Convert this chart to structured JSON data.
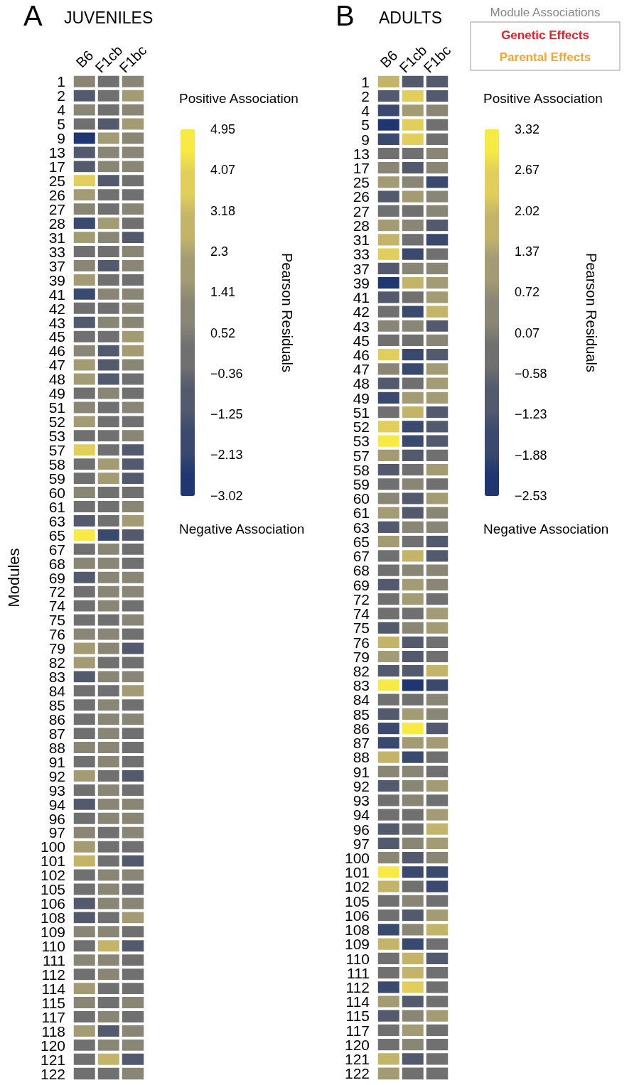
{
  "chart_data": [
    {
      "type": "heatmap",
      "title": "JUVENILES",
      "ylabel": "Modules",
      "clabel": "Pearson Residuals",
      "annotations": [
        "A",
        "Positive Association",
        "Negative Association"
      ],
      "categories": [
        "B6",
        "F1cb",
        "F1bc"
      ],
      "y_categories": [
        "1",
        "2",
        "4",
        "5",
        "9",
        "13",
        "17",
        "25",
        "26",
        "27",
        "28",
        "31",
        "33",
        "37",
        "39",
        "41",
        "42",
        "43",
        "45",
        "46",
        "47",
        "48",
        "49",
        "51",
        "52",
        "53",
        "57",
        "58",
        "59",
        "60",
        "61",
        "63",
        "65",
        "67",
        "68",
        "69",
        "72",
        "74",
        "75",
        "76",
        "79",
        "82",
        "83",
        "84",
        "85",
        "86",
        "87",
        "88",
        "91",
        "92",
        "93",
        "94",
        "96",
        "97",
        "100",
        "101",
        "102",
        "105",
        "106",
        "108",
        "109",
        "110",
        "111",
        "112",
        "114",
        "115",
        "117",
        "118",
        "120",
        "121",
        "122"
      ],
      "clim": [
        -3.02,
        4.95
      ],
      "cticks": [
        -3.02,
        -2.13,
        -1.25,
        -0.36,
        0.52,
        1.41,
        2.3,
        3.18,
        4.07,
        4.95
      ],
      "cells": [
        [
          1,
          0.1,
          1
        ],
        [
          -0.8,
          0.1,
          1.9
        ],
        [
          1,
          0.1,
          1
        ],
        [
          0.1,
          -0.8,
          1.9
        ],
        [
          -2.6,
          1.9,
          1
        ],
        [
          -0.8,
          1,
          1
        ],
        [
          -0.8,
          1,
          1
        ],
        [
          3.6,
          -0.8,
          0.1
        ],
        [
          1.9,
          0.1,
          0.1
        ],
        [
          1,
          0.1,
          1
        ],
        [
          -1.7,
          1.9,
          0.1
        ],
        [
          1.9,
          1,
          -0.8
        ],
        [
          0.1,
          0.1,
          1
        ],
        [
          1,
          -0.8,
          1
        ],
        [
          1.9,
          0.1,
          0.1
        ],
        [
          -1.7,
          1,
          1
        ],
        [
          0.1,
          0.1,
          1
        ],
        [
          -0.8,
          1,
          1
        ],
        [
          0.1,
          0.1,
          1.9
        ],
        [
          1,
          -0.8,
          1.9
        ],
        [
          1.9,
          -0.8,
          1
        ],
        [
          1.9,
          -0.8,
          0.1
        ],
        [
          0.1,
          1,
          0.1
        ],
        [
          1,
          0.1,
          1
        ],
        [
          1.9,
          0.1,
          0.1
        ],
        [
          0.1,
          0.1,
          1
        ],
        [
          3.6,
          0.1,
          -0.8
        ],
        [
          0.1,
          1.9,
          -0.8
        ],
        [
          0.1,
          1.9,
          -0.8
        ],
        [
          1,
          0.1,
          0.1
        ],
        [
          0.1,
          0.1,
          1
        ],
        [
          -0.8,
          0.1,
          1.9
        ],
        [
          4.5,
          -1.7,
          -0.8
        ],
        [
          0.1,
          1,
          0.1
        ],
        [
          1,
          1,
          0.1
        ],
        [
          -0.8,
          1,
          1
        ],
        [
          0.1,
          1,
          1
        ],
        [
          0.1,
          1,
          0.1
        ],
        [
          0.1,
          0.1,
          1
        ],
        [
          1,
          1,
          0.1
        ],
        [
          1.9,
          1,
          -0.8
        ],
        [
          1.9,
          0.1,
          0.1
        ],
        [
          -0.8,
          1,
          1
        ],
        [
          0.1,
          0.1,
          1.9
        ],
        [
          0.1,
          1,
          0.1
        ],
        [
          0.1,
          1,
          1
        ],
        [
          0.1,
          1,
          0.1
        ],
        [
          1,
          1,
          0.1
        ],
        [
          0.1,
          1,
          0.1
        ],
        [
          1.9,
          0.1,
          -0.8
        ],
        [
          0.1,
          1,
          0.1
        ],
        [
          -0.8,
          1,
          1
        ],
        [
          0.1,
          1,
          1
        ],
        [
          1,
          0.1,
          1
        ],
        [
          1.9,
          0.1,
          0.1
        ],
        [
          2.7,
          0.1,
          -0.8
        ],
        [
          0.1,
          1,
          1
        ],
        [
          0.1,
          1,
          0.1
        ],
        [
          -0.8,
          1,
          1
        ],
        [
          -0.8,
          0.1,
          1.9
        ],
        [
          1,
          1,
          0.1
        ],
        [
          0.1,
          2.7,
          -0.8
        ],
        [
          1,
          1,
          0.1
        ],
        [
          0.1,
          1,
          0.1
        ],
        [
          1.9,
          0.1,
          0.1
        ],
        [
          1,
          0.1,
          1
        ],
        [
          0.1,
          1,
          0.1
        ],
        [
          1.9,
          -0.8,
          1
        ],
        [
          0.1,
          1,
          1
        ],
        [
          0.1,
          2.7,
          -0.8
        ],
        [
          0.1,
          0.1,
          1
        ]
      ]
    },
    {
      "type": "heatmap",
      "title": "ADULTS",
      "clabel": "Pearson Residuals",
      "legend_title": "Module Associations",
      "annotations": [
        "B",
        "Positive Association",
        "Negative Association",
        "Genetic Effects",
        "Parental Effects"
      ],
      "categories": [
        "B6",
        "F1cb",
        "F1bc"
      ],
      "y_categories": [
        "1",
        "2",
        "4",
        "5",
        "9",
        "13",
        "17",
        "25",
        "26",
        "27",
        "28",
        "31",
        "33",
        "37",
        "39",
        "41",
        "42",
        "43",
        "45",
        "46",
        "47",
        "48",
        "49",
        "51",
        "52",
        "53",
        "57",
        "58",
        "59",
        "60",
        "61",
        "63",
        "65",
        "67",
        "68",
        "69",
        "72",
        "74",
        "75",
        "76",
        "79",
        "82",
        "83",
        "84",
        "85",
        "86",
        "87",
        "88",
        "91",
        "92",
        "93",
        "94",
        "96",
        "97",
        "100",
        "101",
        "102",
        "105",
        "106",
        "108",
        "109",
        "110",
        "111",
        "112",
        "114",
        "115",
        "117",
        "120",
        "121",
        "122"
      ],
      "clim": [
        -2.53,
        3.32
      ],
      "cticks": [
        -2.53,
        -1.88,
        -1.23,
        -0.58,
        0.07,
        0.72,
        1.37,
        2.02,
        2.67,
        3.32
      ],
      "cells": [
        [
          1.7,
          -0.9,
          -0.9
        ],
        [
          -0.9,
          2.35,
          -0.9
        ],
        [
          -1.55,
          1.05,
          0.4
        ],
        [
          -2.2,
          2.35,
          -0.25
        ],
        [
          -1.55,
          2.35,
          -0.25
        ],
        [
          -0.25,
          -0.25,
          0.4
        ],
        [
          0.4,
          -0.9,
          0.4
        ],
        [
          1.05,
          0.4,
          -1.55
        ],
        [
          -0.9,
          1.05,
          0.4
        ],
        [
          -0.25,
          -0.25,
          0.4
        ],
        [
          1.05,
          0.4,
          -0.9
        ],
        [
          1.7,
          -0.25,
          -1.55
        ],
        [
          2.35,
          -1.55,
          -0.25
        ],
        [
          -0.9,
          0.4,
          0.4
        ],
        [
          -2.2,
          1.7,
          1.05
        ],
        [
          -0.9,
          -0.25,
          1.05
        ],
        [
          -0.25,
          -1.55,
          1.7
        ],
        [
          0.4,
          0.4,
          -0.9
        ],
        [
          -0.25,
          -0.25,
          0.4
        ],
        [
          2.35,
          -1.55,
          -0.9
        ],
        [
          0.4,
          -1.55,
          1.05
        ],
        [
          -0.9,
          -0.25,
          1.05
        ],
        [
          -1.55,
          1.05,
          1.05
        ],
        [
          -0.25,
          1.7,
          -0.9
        ],
        [
          2.35,
          -1.55,
          -0.9
        ],
        [
          3,
          -1.55,
          -0.9
        ],
        [
          1.05,
          -0.9,
          -0.25
        ],
        [
          -0.9,
          -0.25,
          1.05
        ],
        [
          -0.25,
          0.4,
          -0.25
        ],
        [
          0.4,
          -0.9,
          1.05
        ],
        [
          1.05,
          -0.9,
          0.4
        ],
        [
          -0.9,
          0.4,
          0.4
        ],
        [
          1.05,
          -0.25,
          -0.9
        ],
        [
          -0.25,
          1.7,
          -0.9
        ],
        [
          -0.25,
          0.4,
          0.4
        ],
        [
          -0.9,
          1.05,
          0.4
        ],
        [
          -0.25,
          1.05,
          -0.25
        ],
        [
          -0.25,
          -0.25,
          1.05
        ],
        [
          -0.9,
          0.4,
          1.05
        ],
        [
          1.7,
          -0.9,
          -0.25
        ],
        [
          1.05,
          -0.9,
          -0.25
        ],
        [
          -0.9,
          -0.9,
          1.7
        ],
        [
          3,
          -2.2,
          -1.55
        ],
        [
          -0.25,
          -0.25,
          0.4
        ],
        [
          -0.9,
          1.05,
          0.4
        ],
        [
          -1.55,
          3,
          -0.9
        ],
        [
          -1.55,
          1.05,
          1.05
        ],
        [
          1.7,
          -1.55,
          -0.25
        ],
        [
          0.4,
          0.4,
          -0.25
        ],
        [
          -0.9,
          0.4,
          1.05
        ],
        [
          -0.25,
          0.4,
          -0.25
        ],
        [
          -0.25,
          -0.25,
          1.05
        ],
        [
          -0.9,
          -0.25,
          1.7
        ],
        [
          -0.9,
          0.4,
          1.05
        ],
        [
          0.4,
          -0.9,
          0.4
        ],
        [
          3,
          -1.55,
          -1.55
        ],
        [
          1.7,
          -0.25,
          -1.55
        ],
        [
          -0.25,
          0.4,
          -0.25
        ],
        [
          -0.25,
          -0.9,
          1.05
        ],
        [
          -1.55,
          0.4,
          1.7
        ],
        [
          1.7,
          -1.55,
          -0.25
        ],
        [
          -0.25,
          1.7,
          -0.9
        ],
        [
          -0.25,
          1.7,
          -0.25
        ],
        [
          -1.55,
          2.35,
          -0.25
        ],
        [
          1.05,
          -0.9,
          -0.25
        ],
        [
          -0.9,
          0.4,
          1.05
        ],
        [
          -0.25,
          1.05,
          -0.25
        ],
        [
          -0.25,
          0.4,
          -0.25
        ],
        [
          1.7,
          -0.9,
          -0.25
        ],
        [
          1.05,
          -0.25,
          -0.25
        ]
      ]
    }
  ]
}
